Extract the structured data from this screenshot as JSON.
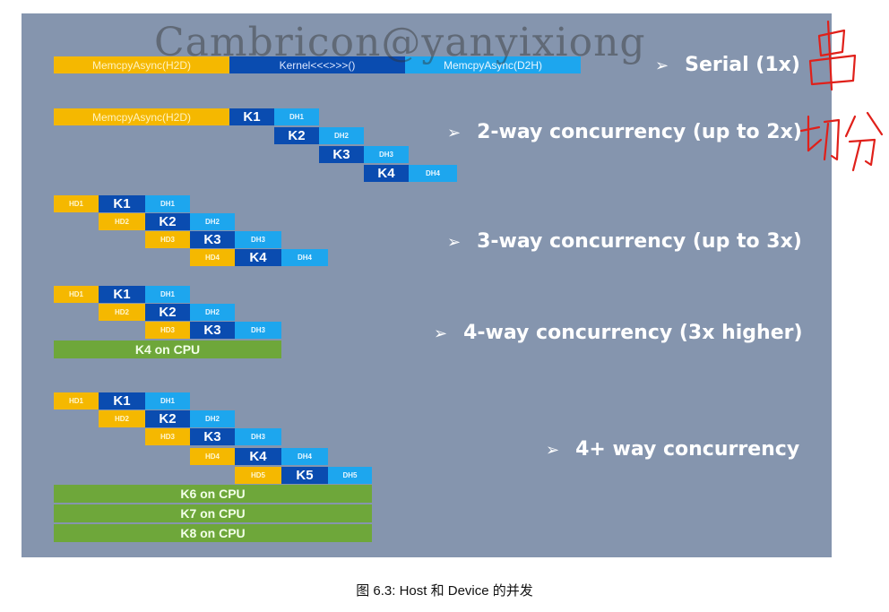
{
  "watermark": "Cambricon@yanyixiong",
  "rows": {
    "serial": {
      "label": "Serial (1x)",
      "h2d": "MemcpyAsync(H2D)",
      "kernel": "Kernel<<<>>>()",
      "d2h": "MemcpyAsync(D2H)"
    },
    "two_way": {
      "label": "2-way concurrency (up to 2x)",
      "h2d": "MemcpyAsync(H2D)",
      "k": [
        "K1",
        "K2",
        "K3",
        "K4"
      ],
      "dh": [
        "DH1",
        "DH2",
        "DH3",
        "DH4"
      ]
    },
    "three_way": {
      "label": "3-way concurrency (up to 3x)",
      "hd": [
        "HD1",
        "HD2",
        "HD3",
        "HD4"
      ],
      "k": [
        "K1",
        "K2",
        "K3",
        "K4"
      ],
      "dh": [
        "DH1",
        "DH2",
        "DH3",
        "DH4"
      ]
    },
    "four_way": {
      "label": "4-way concurrency (3x higher)",
      "hd": [
        "HD1",
        "HD2",
        "HD3"
      ],
      "k": [
        "K1",
        "K2",
        "K3"
      ],
      "dh": [
        "DH1",
        "DH2",
        "DH3"
      ],
      "cpu": "K4 on CPU"
    },
    "four_plus": {
      "label": "4+ way concurrency",
      "hd": [
        "HD1",
        "HD2",
        "HD3",
        "HD4",
        "HD5"
      ],
      "k": [
        "K1",
        "K2",
        "K3",
        "K4",
        "K5"
      ],
      "dh": [
        "DH1",
        "DH2",
        "DH3",
        "DH4",
        "DH5"
      ],
      "cpu": [
        "K6 on CPU",
        "K7 on CPU",
        "K8 on CPU"
      ]
    }
  },
  "handwriting": {
    "serial_note": "串",
    "concurrency_note": "切分"
  },
  "caption": "图 6.3: Host 和 Device 的并发",
  "colors": {
    "background": "#8595ae",
    "h2d": "#f5b800",
    "kernel": "#0a4cb0",
    "d2h": "#1da6ee",
    "cpu": "#6ea73a",
    "handwriting": "#e0201a"
  }
}
